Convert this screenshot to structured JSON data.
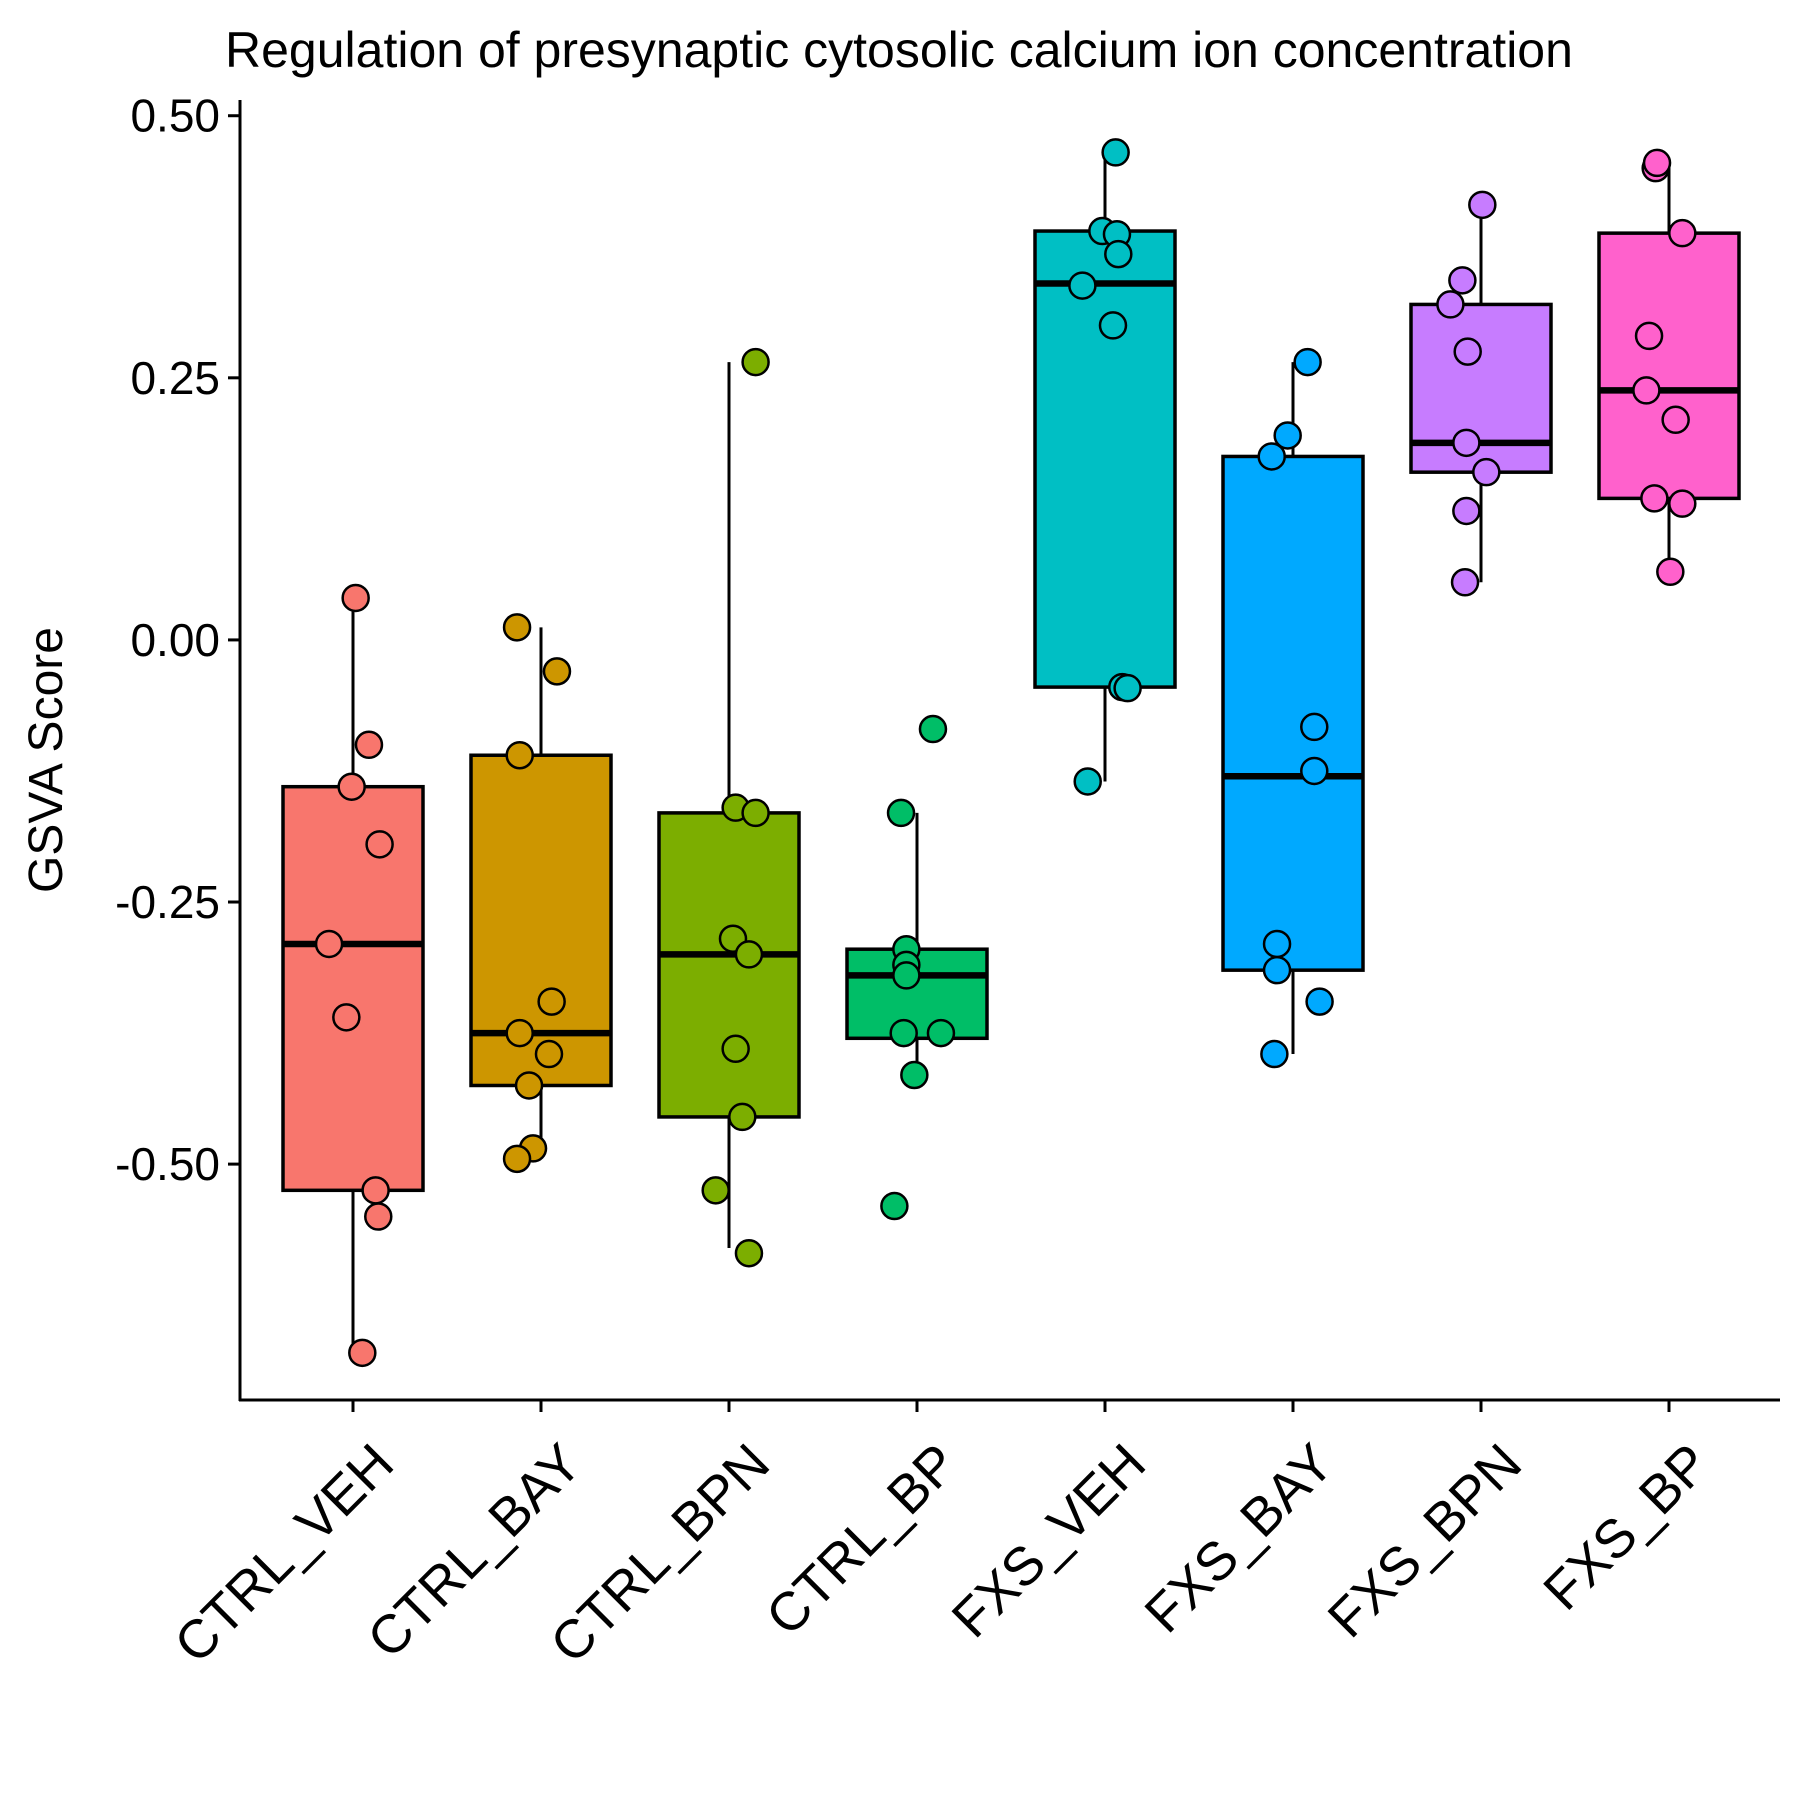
{
  "chart_data": {
    "type": "box",
    "title": "Regulation of presynaptic cytosolic calcium ion concentration",
    "xlabel": "",
    "ylabel": "GSVA Score",
    "ylim": [
      -0.725,
      0.515
    ],
    "yticks": [
      0.5,
      0.25,
      0.0,
      -0.25,
      -0.5
    ],
    "ytick_labels": [
      "0.50",
      "0.25",
      "0.00",
      "-0.25",
      "-0.50"
    ],
    "grid": false,
    "legend": "none",
    "categories": [
      "CTRL_VEH",
      "CTRL_BAY",
      "CTRL_BPN",
      "CTRL_BP",
      "FXS_VEH",
      "FXS_BAY",
      "FXS_BPN",
      "FXS_BP"
    ],
    "colors": [
      "#F8766D",
      "#CD9600",
      "#7CAE00",
      "#00BE67",
      "#00BFC4",
      "#00A9FF",
      "#C77CFF",
      "#FF61CC"
    ],
    "boxes": [
      {
        "q1": -0.525,
        "median": -0.29,
        "q3": -0.14,
        "whisker_low": -0.68,
        "whisker_high": 0.04
      },
      {
        "q1": -0.425,
        "median": -0.375,
        "q3": -0.11,
        "whisker_low": -0.495,
        "whisker_high": 0.012
      },
      {
        "q1": -0.455,
        "median": -0.3,
        "q3": -0.165,
        "whisker_low": -0.58,
        "whisker_high": 0.265
      },
      {
        "q1": -0.38,
        "median": -0.32,
        "q3": -0.295,
        "whisker_low": -0.42,
        "whisker_high": -0.165
      },
      {
        "q1": -0.045,
        "median": 0.34,
        "q3": 0.39,
        "whisker_low": -0.135,
        "whisker_high": 0.465
      },
      {
        "q1": -0.315,
        "median": -0.13,
        "q3": 0.175,
        "whisker_low": -0.395,
        "whisker_high": 0.265
      },
      {
        "q1": 0.16,
        "median": 0.188,
        "q3": 0.32,
        "whisker_low": 0.055,
        "whisker_high": 0.415
      },
      {
        "q1": 0.135,
        "median": 0.238,
        "q3": 0.388,
        "whisker_low": 0.065,
        "whisker_high": 0.455
      }
    ],
    "points": [
      [
        [
          0.02,
          0.04
        ],
        [
          0.12,
          -0.1
        ],
        [
          -0.01,
          -0.14
        ],
        [
          0.2,
          -0.195
        ],
        [
          -0.18,
          -0.29
        ],
        [
          -0.05,
          -0.36
        ],
        [
          0.17,
          -0.525
        ],
        [
          0.19,
          -0.55
        ],
        [
          0.07,
          -0.68
        ]
      ],
      [
        [
          -0.18,
          0.012
        ],
        [
          0.12,
          -0.03
        ],
        [
          -0.16,
          -0.11
        ],
        [
          0.08,
          -0.345
        ],
        [
          -0.16,
          -0.375
        ],
        [
          0.06,
          -0.395
        ],
        [
          -0.09,
          -0.425
        ],
        [
          -0.06,
          -0.485
        ],
        [
          -0.18,
          -0.495
        ]
      ],
      [
        [
          0.2,
          0.265
        ],
        [
          0.05,
          -0.16
        ],
        [
          0.2,
          -0.165
        ],
        [
          0.03,
          -0.285
        ],
        [
          0.15,
          -0.3
        ],
        [
          0.05,
          -0.39
        ],
        [
          0.1,
          -0.455
        ],
        [
          -0.1,
          -0.525
        ],
        [
          0.15,
          -0.585
        ]
      ],
      [
        [
          0.12,
          -0.085
        ],
        [
          -0.12,
          -0.165
        ],
        [
          -0.08,
          -0.295
        ],
        [
          -0.08,
          -0.31
        ],
        [
          -0.08,
          -0.32
        ],
        [
          -0.1,
          -0.375
        ],
        [
          0.18,
          -0.375
        ],
        [
          -0.02,
          -0.415
        ],
        [
          -0.17,
          -0.54
        ]
      ],
      [
        [
          0.08,
          0.465
        ],
        [
          -0.02,
          0.39
        ],
        [
          0.09,
          0.387
        ],
        [
          0.1,
          0.368
        ],
        [
          -0.17,
          0.338
        ],
        [
          0.06,
          0.3
        ],
        [
          0.13,
          -0.045
        ],
        [
          0.17,
          -0.046
        ],
        [
          -0.13,
          -0.135
        ]
      ],
      [
        [
          0.11,
          0.265
        ],
        [
          -0.04,
          0.195
        ],
        [
          -0.16,
          0.175
        ],
        [
          0.16,
          -0.083
        ],
        [
          0.16,
          -0.125
        ],
        [
          -0.12,
          -0.29
        ],
        [
          -0.12,
          -0.315
        ],
        [
          0.2,
          -0.345
        ],
        [
          -0.14,
          -0.395
        ]
      ],
      [
        [
          0.01,
          0.415
        ],
        [
          -0.14,
          0.343
        ],
        [
          -0.23,
          0.32
        ],
        [
          -0.1,
          0.275
        ],
        [
          -0.11,
          0.188
        ],
        [
          0.04,
          0.16
        ],
        [
          -0.11,
          0.123
        ],
        [
          -0.12,
          0.055
        ]
      ],
      [
        [
          -0.1,
          0.45
        ],
        [
          -0.09,
          0.455
        ],
        [
          0.1,
          0.388
        ],
        [
          -0.15,
          0.29
        ],
        [
          -0.17,
          0.238
        ],
        [
          0.05,
          0.21
        ],
        [
          -0.11,
          0.135
        ],
        [
          0.1,
          0.13
        ],
        [
          0.01,
          0.065
        ]
      ]
    ]
  }
}
